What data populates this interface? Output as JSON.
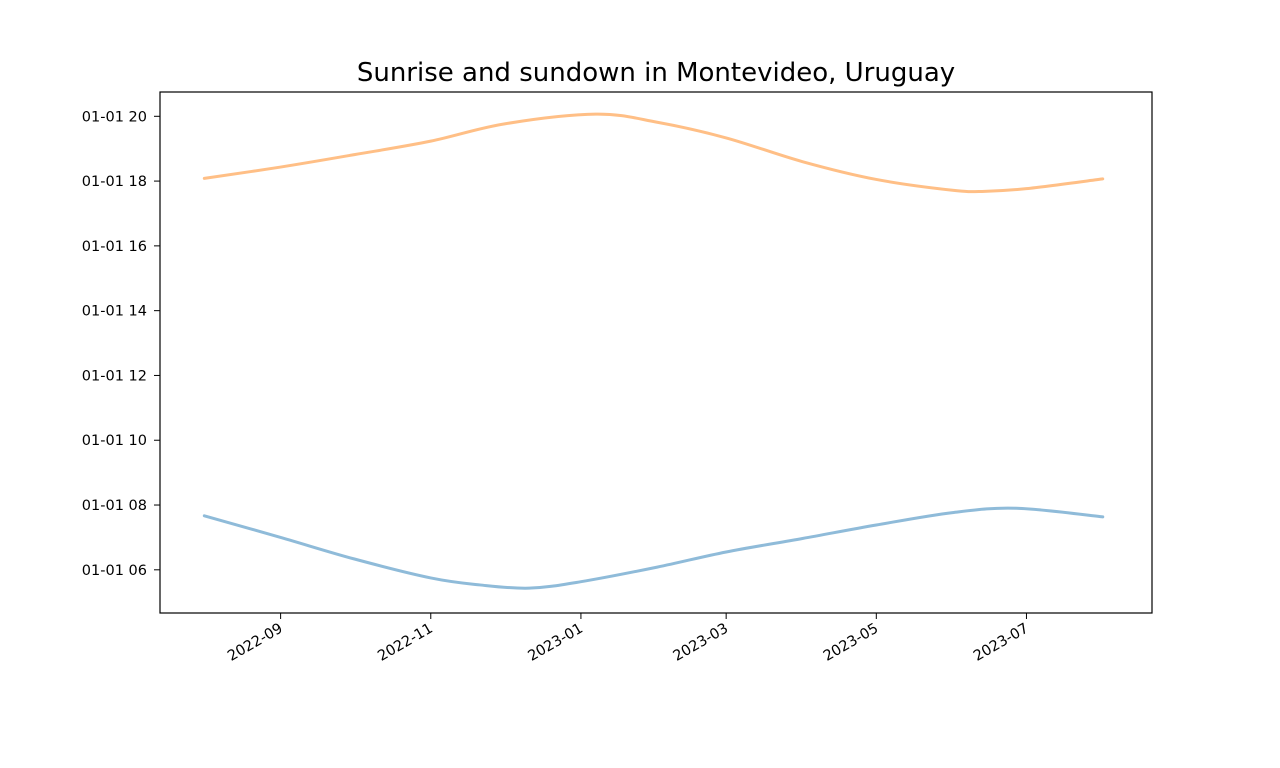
{
  "chart_data": {
    "type": "line",
    "title": "Sunrise and sundown in Montevideo, Uruguay",
    "xlabel": "",
    "ylabel": "",
    "grid": false,
    "legend": "none",
    "x_ticks": [
      "2022-09",
      "2022-11",
      "2023-01",
      "2023-03",
      "2023-05",
      "2023-07"
    ],
    "y_ticks": [
      "01-01 06",
      "01-01 08",
      "01-01 10",
      "01-01 12",
      "01-01 14",
      "01-01 16",
      "01-01 18",
      "01-01 20"
    ],
    "xlim": [
      "2022-07-14",
      "2023-08-21"
    ],
    "ylim": [
      "01-01 04:40",
      "01-01 20:45"
    ],
    "series": [
      {
        "color": "#1f77b4",
        "alpha": 0.5,
        "x": [
          "2022-08-01",
          "2022-09-01",
          "2022-10-01",
          "2022-11-01",
          "2022-11-21",
          "2022-12-11",
          "2023-01-01",
          "2023-02-01",
          "2023-03-01",
          "2023-04-01",
          "2023-05-01",
          "2023-06-01",
          "2023-06-27",
          "2023-08-01"
        ],
        "y": [
          "01-01 07:40",
          "01-01 07:00",
          "01-01 06:20",
          "01-01 05:45",
          "01-01 05:32",
          "01-01 05:26",
          "01-01 05:38",
          "01-01 06:05",
          "01-01 06:33",
          "01-01 06:58",
          "01-01 07:23",
          "01-01 07:46",
          "01-01 07:54",
          "01-01 07:38"
        ]
      },
      {
        "color": "#ff7f0e",
        "alpha": 0.5,
        "x": [
          "2022-08-01",
          "2022-09-01",
          "2022-10-01",
          "2022-11-01",
          "2022-12-01",
          "2023-01-07",
          "2023-02-01",
          "2023-03-01",
          "2023-04-01",
          "2023-05-01",
          "2023-06-01",
          "2023-06-14",
          "2023-07-01",
          "2023-08-01"
        ],
        "y": [
          "01-01 18:05",
          "01-01 18:26",
          "01-01 18:49",
          "01-01 19:14",
          "01-01 19:46",
          "01-01 20:04",
          "01-01 19:49",
          "01-01 19:20",
          "01-01 18:36",
          "01-01 18:03",
          "01-01 17:43",
          "01-01 17:41",
          "01-01 17:46",
          "01-01 18:04"
        ]
      }
    ]
  }
}
